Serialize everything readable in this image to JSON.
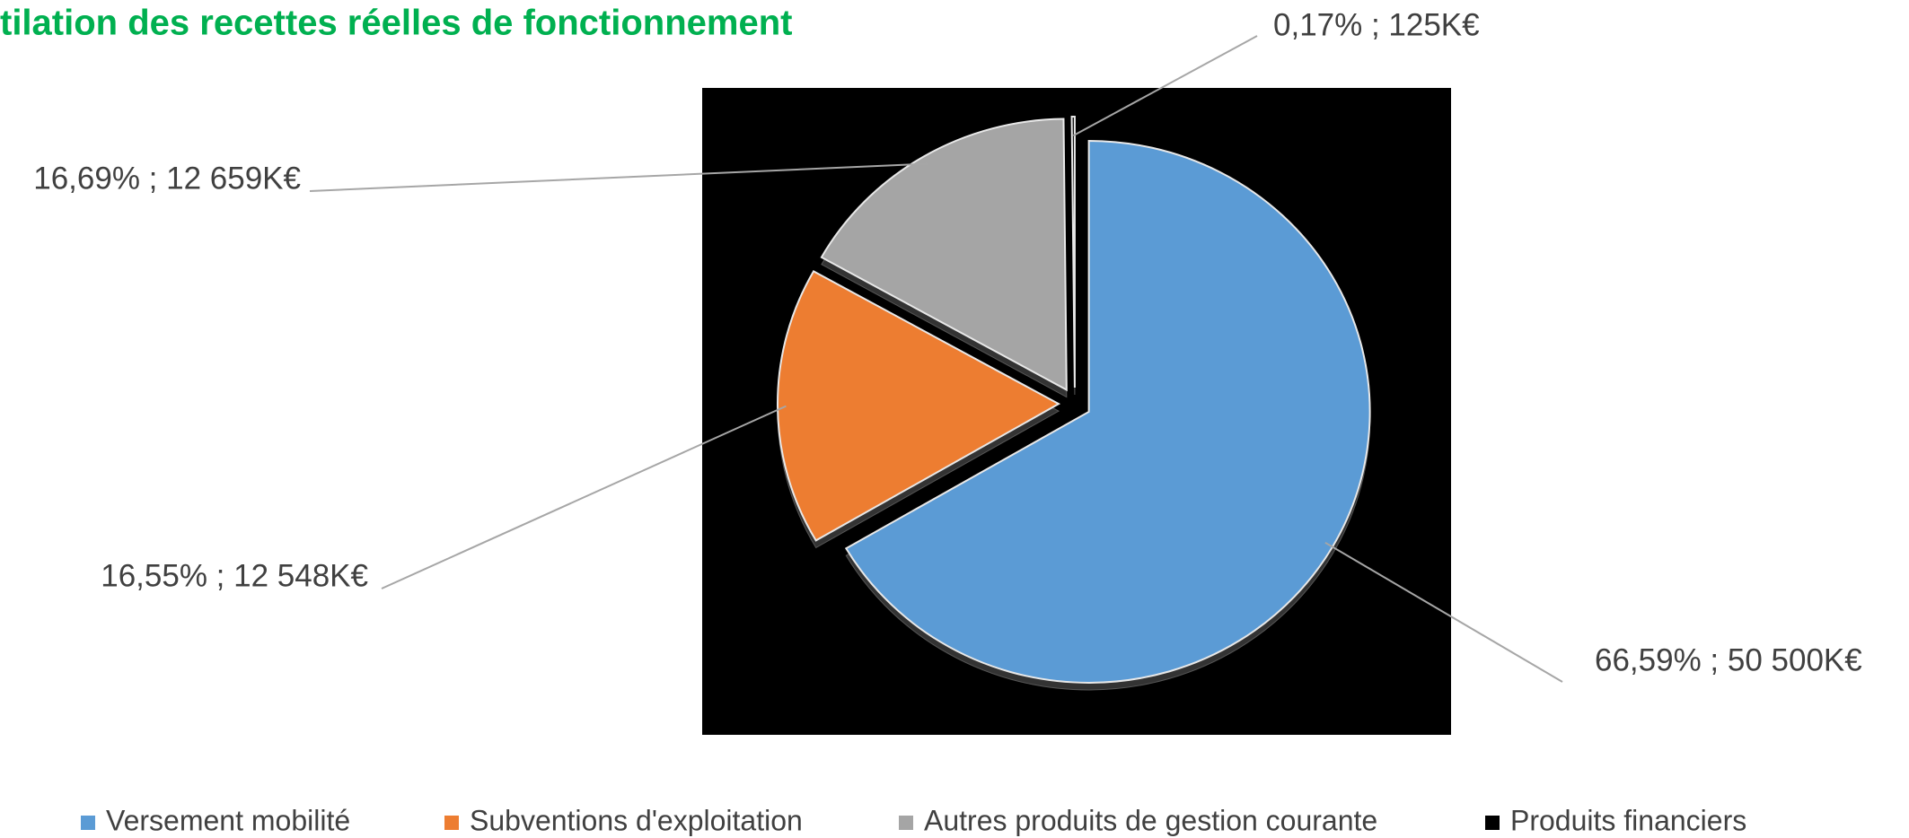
{
  "chart_data": {
    "type": "pie",
    "title": "tilation des recettes réelles de fonctionnement",
    "categories": [
      "Versement mobilité",
      "Subventions d'exploitation",
      "Autres produits de gestion courante",
      "Produits financiers"
    ],
    "values": [
      66.59,
      16.55,
      16.69,
      0.17
    ],
    "value_labels": [
      "66,59% ; 50 500K€",
      "16,55% ; 12 548K€",
      "16,69% ; 12 659K€",
      "0,17% ; 125K€"
    ],
    "colors": [
      "#5b9bd5",
      "#ed7d31",
      "#a5a5a5",
      "#000000"
    ],
    "legend": "bottom"
  }
}
